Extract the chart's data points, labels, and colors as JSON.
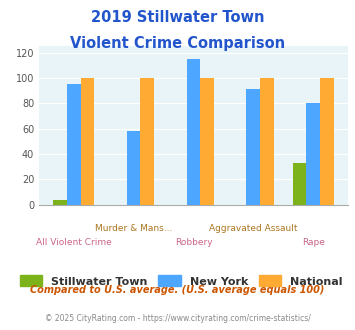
{
  "title_line1": "2019 Stillwater Town",
  "title_line2": "Violent Crime Comparison",
  "categories": [
    "All Violent Crime",
    "Murder & Mans...",
    "Robbery",
    "Aggravated Assault",
    "Rape"
  ],
  "stillwater": [
    4,
    0,
    0,
    0,
    33
  ],
  "new_york": [
    95,
    58,
    115,
    91,
    80
  ],
  "national": [
    100,
    100,
    100,
    100,
    100
  ],
  "colors": {
    "stillwater": "#7db31a",
    "new_york": "#4da6ff",
    "national": "#ffaa33"
  },
  "ylim": [
    0,
    125
  ],
  "yticks": [
    0,
    20,
    40,
    60,
    80,
    100,
    120
  ],
  "legend_labels": [
    "Stillwater Town",
    "New York",
    "National"
  ],
  "footnote1": "Compared to U.S. average. (U.S. average equals 100)",
  "footnote2": "© 2025 CityRating.com - https://www.cityrating.com/crime-statistics/",
  "title_color": "#2255cc",
  "footnote1_color": "#cc5500",
  "footnote2_color": "#888888",
  "bg_color": "#e8f4f8",
  "xticklabel_color_top": "#aa7722",
  "xticklabel_color_bot": "#cc6688"
}
